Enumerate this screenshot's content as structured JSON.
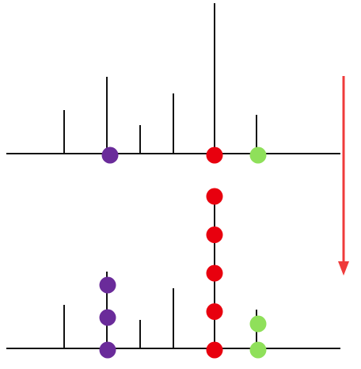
{
  "colors": {
    "line": "#111111",
    "purple": "#6a2b9a",
    "red": "#e8000e",
    "green": "#8fe05a",
    "arrow": "#ef3b3b"
  },
  "panels": [
    {
      "name": "top",
      "balls": [
        {
          "color": "purple",
          "count": 1
        },
        {
          "color": "red",
          "count": 1
        },
        {
          "color": "green",
          "count": 1
        }
      ]
    },
    {
      "name": "bottom",
      "balls": [
        {
          "color": "purple",
          "count": 3
        },
        {
          "color": "red",
          "count": 5
        },
        {
          "color": "green",
          "count": 2
        }
      ]
    }
  ],
  "arrow": {
    "direction": "down",
    "icon": "down-arrow-icon"
  }
}
